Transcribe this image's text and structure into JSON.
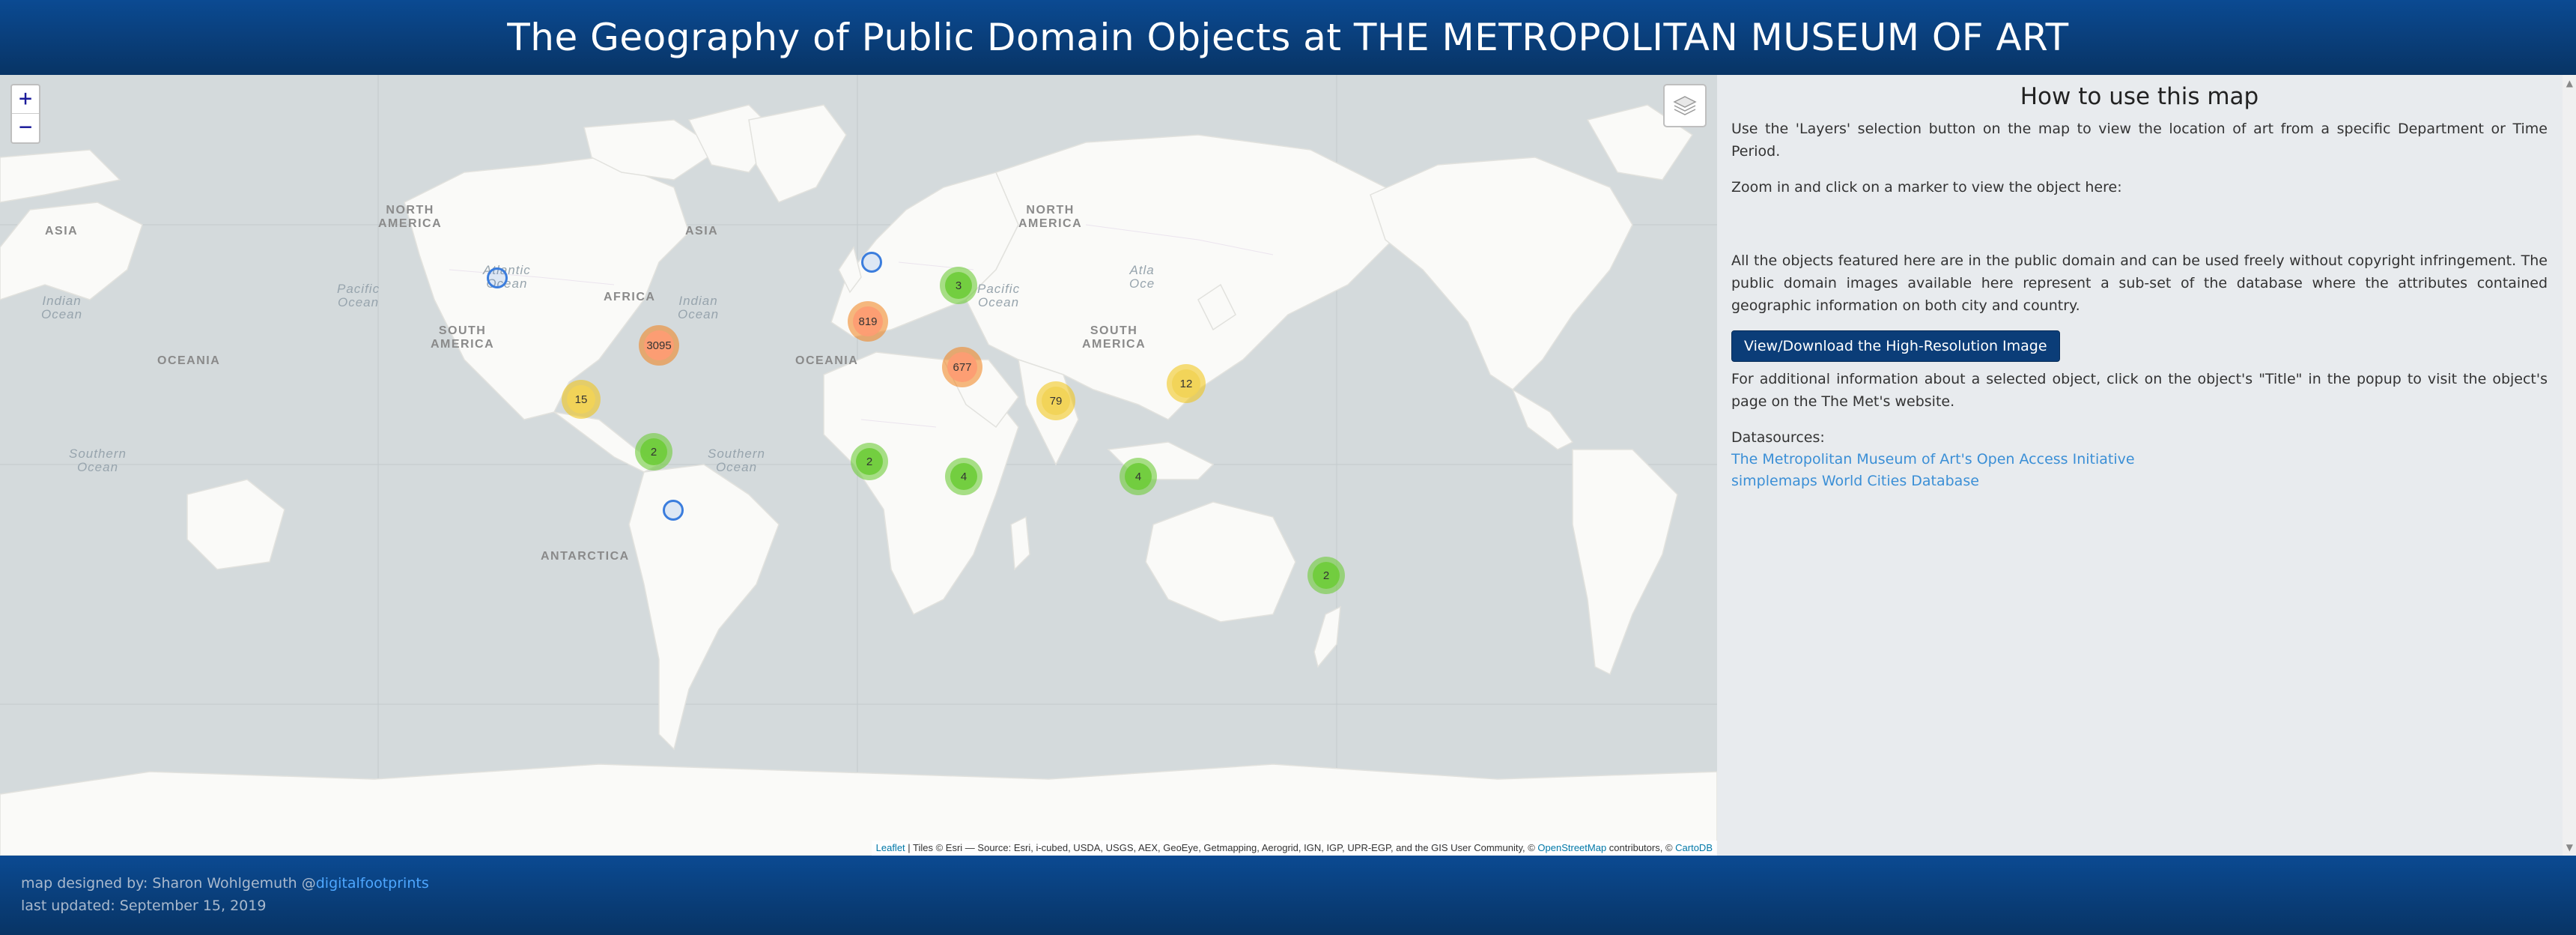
{
  "header": {
    "title": "The Geography of Public Domain Objects at THE METROPOLITAN MUSEUM OF ART"
  },
  "map": {
    "zoom_in": "+",
    "zoom_out": "−",
    "clusters": [
      {
        "count": "3",
        "color": "green"
      },
      {
        "count": "819",
        "color": "orange"
      },
      {
        "count": "3095",
        "color": "orange"
      },
      {
        "count": "677",
        "color": "orange"
      },
      {
        "count": "15",
        "color": "yellow"
      },
      {
        "count": "79",
        "color": "yellow"
      },
      {
        "count": "12",
        "color": "yellow"
      },
      {
        "count": "2",
        "color": "green"
      },
      {
        "count": "2",
        "color": "green"
      },
      {
        "count": "4",
        "color": "green"
      },
      {
        "count": "4",
        "color": "green"
      },
      {
        "count": "2",
        "color": "green"
      }
    ],
    "labels": {
      "asia_left": "ASIA",
      "north_america": "NORTH\nAMERICA",
      "asia": "ASIA",
      "africa": "AFRICA",
      "south_america": "SOUTH\nAMERICA",
      "oceania_left": "OCEANIA",
      "oceania": "OCEANIA",
      "north_america_right": "NORTH\nAMERICA",
      "south_america_right": "SOUTH\nAMERICA",
      "antarctica": "ANTARCTICA",
      "atlantic": "Atlantic\nOcean",
      "atlantic_right": "Atla\nOce",
      "pacific_left": "Pacific\nOcean",
      "pacific_right": "Pacific\nOcean",
      "indian_left": "Indian\nOcean",
      "indian": "Indian\nOcean",
      "southern_left": "Southern\nOcean",
      "southern": "Southern\nOcean"
    },
    "attribution": {
      "leaflet": "Leaflet",
      "tiles": " | Tiles © Esri — Source: Esri, i-cubed, USDA, USGS, AEX, GeoEye, Getmapping, Aerogrid, IGN, IGP, UPR-EGP, and the GIS User Community, © ",
      "osm": "OpenStreetMap",
      "contributors": " contributors, © ",
      "carto": "CartoDB"
    },
    "colors": {
      "water": "#d4dadc",
      "land": "#fafaf8",
      "cluster_green": "#6ecc39",
      "cluster_yellow": "#f0c20c",
      "cluster_orange": "#f18017",
      "point": "#3b7ddd"
    }
  },
  "sidebar": {
    "title": "How to use this map",
    "p1": "Use the 'Layers' selection button on the map to view the location of art from a specific Department or Time Period.",
    "p2": "Zoom in and click on a marker to view the object here:",
    "p3": "All the objects featured here are in the public domain and can be used freely without copyright infringement. The public domain images available here represent a sub-set of the database where the attributes contained geographic information on both city and country.",
    "button": "View/Download the High-Resolution Image",
    "p4": "For additional information about a selected object, click on the object's \"Title\" in the popup to visit the object's page on the The Met's website.",
    "datasources_label": "Datasources:",
    "link1": "The Metropolitan Museum of Art's Open Access Initiative",
    "link2": "simplemaps World Cities Database"
  },
  "footer": {
    "designed_by": "map designed by: Sharon Wohlgemuth @",
    "handle": "digitalfootprints",
    "updated": "last updated: September 15, 2019"
  }
}
